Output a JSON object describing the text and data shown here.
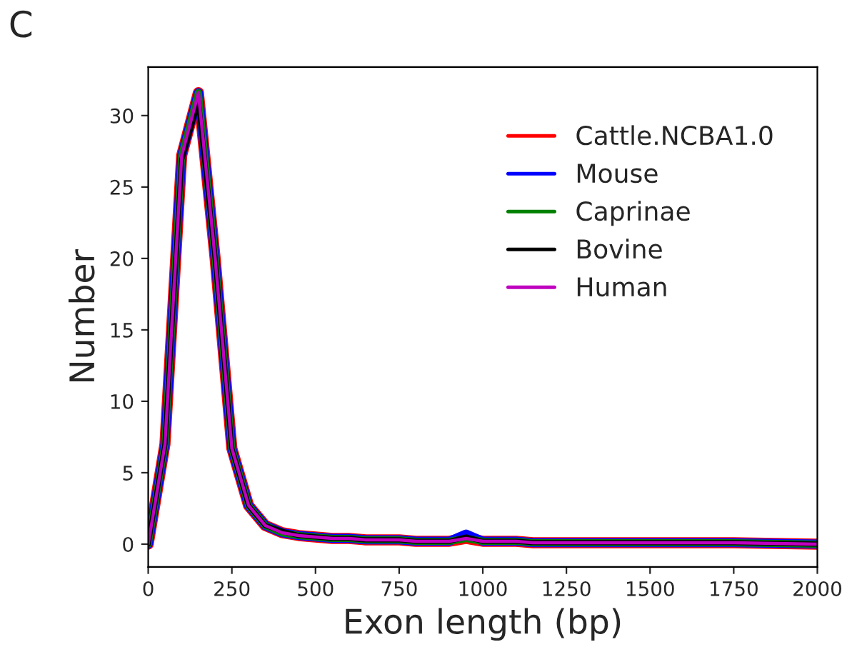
{
  "chart_data": {
    "type": "line",
    "xlabel": "Exon length (bp)",
    "ylabel": "Number",
    "annotations": [
      "C"
    ],
    "x": [
      0,
      50,
      100,
      150,
      200,
      250,
      300,
      350,
      400,
      450,
      500,
      550,
      600,
      650,
      700,
      750,
      800,
      850,
      900,
      950,
      1000,
      1050,
      1100,
      1150,
      1200,
      1250,
      1500,
      1750,
      2000
    ],
    "series": [
      {
        "name": "Cattle.NCBA1.0",
        "color": "#ff0000",
        "values": [
          0,
          7,
          27.2,
          31.6,
          20,
          6.7,
          2.7,
          1.3,
          0.8,
          0.6,
          0.5,
          0.4,
          0.4,
          0.3,
          0.3,
          0.3,
          0.2,
          0.2,
          0.2,
          0.4,
          0.2,
          0.2,
          0.2,
          0.1,
          0.1,
          0.1,
          0.1,
          0.1,
          0
        ]
      },
      {
        "name": "Mouse",
        "color": "#0000ff",
        "values": [
          0,
          7,
          27.2,
          31.6,
          20,
          6.7,
          2.7,
          1.3,
          0.8,
          0.6,
          0.5,
          0.4,
          0.4,
          0.3,
          0.3,
          0.3,
          0.2,
          0.2,
          0.2,
          0.7,
          0.2,
          0.2,
          0.2,
          0.1,
          0.1,
          0.1,
          0.1,
          0.1,
          0
        ]
      },
      {
        "name": "Caprinae",
        "color": "#008000",
        "values": [
          0,
          7,
          27.2,
          31.6,
          20,
          6.7,
          2.7,
          1.3,
          0.8,
          0.6,
          0.5,
          0.4,
          0.4,
          0.3,
          0.3,
          0.3,
          0.2,
          0.2,
          0.2,
          0.4,
          0.2,
          0.2,
          0.2,
          0.1,
          0.1,
          0.1,
          0.1,
          0.1,
          0
        ]
      },
      {
        "name": "Bovine",
        "color": "#000000",
        "values": [
          0,
          7,
          26.9,
          31.0,
          20,
          6.7,
          2.7,
          1.3,
          0.9,
          0.6,
          0.5,
          0.4,
          0.4,
          0.3,
          0.3,
          0.3,
          0.2,
          0.2,
          0.2,
          0.5,
          0.2,
          0.2,
          0.2,
          0.1,
          0.1,
          0.1,
          0.1,
          0.1,
          0
        ]
      },
      {
        "name": "Human",
        "color": "#bf00bf",
        "values": [
          0,
          7,
          27.2,
          31.6,
          20,
          6.7,
          2.7,
          1.3,
          0.8,
          0.6,
          0.5,
          0.4,
          0.4,
          0.3,
          0.3,
          0.3,
          0.2,
          0.2,
          0.2,
          0.4,
          0.2,
          0.2,
          0.2,
          0.1,
          0.1,
          0.1,
          0.1,
          0.1,
          0
        ]
      }
    ],
    "xlim": [
      0,
      2000
    ],
    "xticks": [
      0,
      250,
      500,
      750,
      1000,
      1250,
      1500,
      1750,
      2000
    ],
    "ylim": [
      -1.6,
      33.4
    ],
    "yticks": [
      0,
      5,
      10,
      15,
      20,
      25,
      30
    ],
    "grid": false,
    "legend": "top right",
    "marker": "none",
    "line_style": "solid"
  }
}
